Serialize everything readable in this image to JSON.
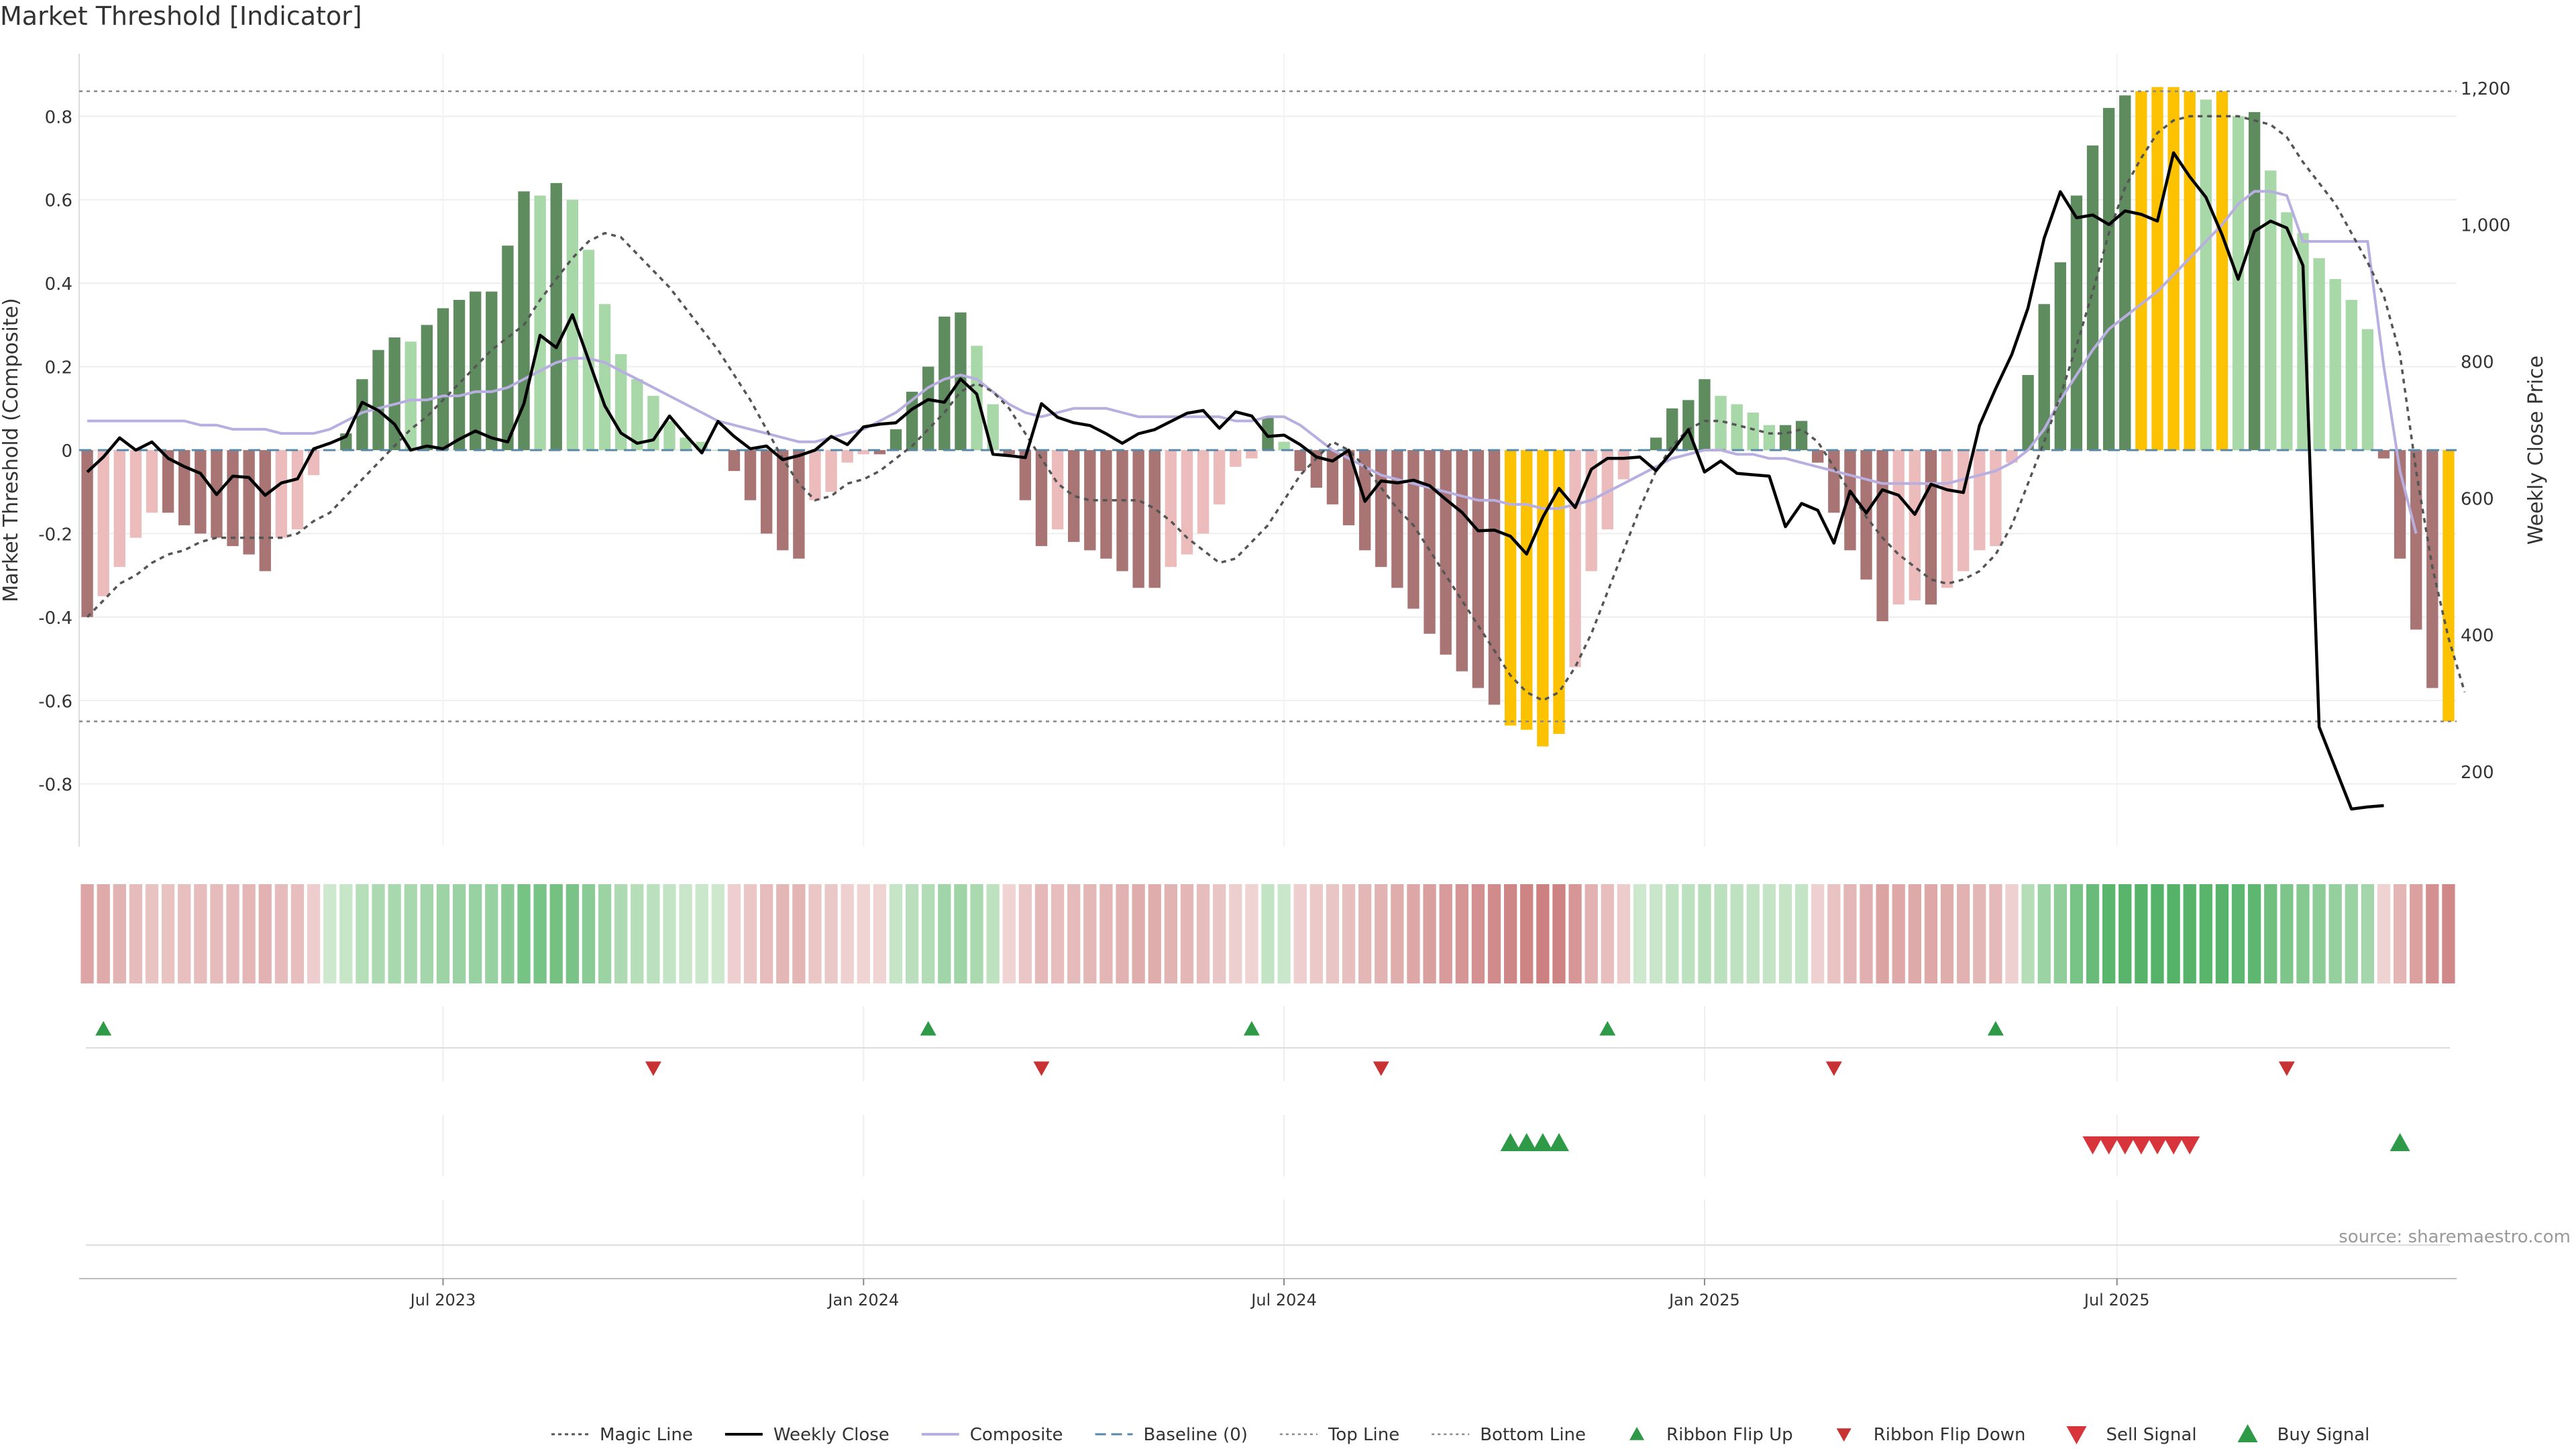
{
  "title": "Market Threshold [Indicator]",
  "source": "source: sharemaestro.com",
  "chart_data": {
    "type": "bar",
    "ylabel_left": "Market Threshold (Composite)",
    "ylabel_right": "Weekly Close Price",
    "left_ylim": [
      -0.95,
      0.95
    ],
    "left_ticks": [
      "-0.8",
      "-0.6",
      "-0.4",
      "-0.2",
      "0",
      "0.2",
      "0.4",
      "0.6",
      "0.8"
    ],
    "right_ylim": [
      90,
      1250
    ],
    "right_ticks": [
      "200",
      "400",
      "600",
      "800",
      "1,000",
      "1,200"
    ],
    "top_line": 0.86,
    "bottom_line": -0.65,
    "x_ticks": [
      {
        "label": "Jul 2023",
        "week": 22
      },
      {
        "label": "Jan 2024",
        "week": 48
      },
      {
        "label": "Jul 2024",
        "week": 74
      },
      {
        "label": "Jan 2025",
        "week": 100
      },
      {
        "label": "Jul 2025",
        "week": 125.5
      }
    ],
    "grid": true,
    "legend_position": "bottom",
    "composite_histogram": [
      -0.4,
      -0.35,
      -0.28,
      -0.21,
      -0.15,
      -0.15,
      -0.18,
      -0.2,
      -0.21,
      -0.23,
      -0.25,
      -0.29,
      -0.21,
      -0.19,
      -0.06,
      0,
      0.04,
      0.17,
      0.24,
      0.27,
      0.26,
      0.3,
      0.34,
      0.36,
      0.38,
      0.38,
      0.49,
      0.62,
      0.61,
      0.64,
      0.6,
      0.48,
      0.35,
      0.23,
      0.17,
      0.13,
      0.07,
      0.03,
      0.02,
      0,
      -0.05,
      -0.12,
      -0.2,
      -0.24,
      -0.26,
      -0.12,
      -0.1,
      -0.03,
      -0.01,
      -0.01,
      0.05,
      0.14,
      0.2,
      0.32,
      0.33,
      0.25,
      0.11,
      -0.01,
      -0.12,
      -0.23,
      -0.19,
      -0.22,
      -0.24,
      -0.26,
      -0.29,
      -0.33,
      -0.33,
      -0.28,
      -0.25,
      -0.2,
      -0.13,
      -0.04,
      -0.02,
      0.08,
      0.02,
      -0.05,
      -0.09,
      -0.13,
      -0.18,
      -0.24,
      -0.28,
      -0.33,
      -0.38,
      -0.44,
      -0.49,
      -0.53,
      -0.57,
      -0.61,
      -0.66,
      -0.67,
      -0.71,
      -0.68,
      -0.52,
      -0.29,
      -0.19,
      -0.07,
      0,
      0.03,
      0.1,
      0.12,
      0.17,
      0.13,
      0.11,
      0.09,
      0.06,
      0.06,
      0.07,
      -0.03,
      -0.15,
      -0.24,
      -0.31,
      -0.41,
      -0.37,
      -0.36,
      -0.37,
      -0.33,
      -0.29,
      -0.24,
      -0.23,
      -0.03,
      0.18,
      0.35,
      0.45,
      0.61,
      0.73,
      0.82,
      0.85,
      0.86,
      0.87,
      0.87,
      0.86,
      0.84,
      0.86,
      0.8,
      0.81,
      0.67,
      0.57,
      0.52,
      0.46,
      0.41,
      0.36,
      0.29,
      -0.02,
      -0.26,
      -0.43,
      -0.57,
      -0.65
    ],
    "weekly_close": [
      638,
      660,
      688,
      670,
      682,
      658,
      646,
      636,
      605,
      632,
      630,
      604,
      622,
      628,
      672,
      680,
      690,
      740,
      728,
      708,
      670,
      676,
      672,
      686,
      698,
      688,
      682,
      738,
      838,
      820,
      868,
      802,
      735,
      695,
      680,
      685,
      720,
      692,
      666,
      712,
      690,
      672,
      676,
      656,
      662,
      670,
      690,
      678,
      704,
      708,
      710,
      730,
      744,
      740,
      774,
      752,
      664,
      662,
      659,
      738,
      718,
      710,
      706,
      694,
      680,
      694,
      700,
      712,
      724,
      728,
      702,
      726,
      720,
      690,
      692,
      678,
      660,
      654,
      670,
      595,
      625,
      622,
      626,
      618,
      598,
      579,
      552,
      553,
      544,
      518,
      572,
      614,
      586,
      642,
      658,
      658,
      660,
      640,
      668,
      700,
      638,
      654,
      636,
      634,
      632,
      558,
      592,
      582,
      534,
      610,
      578,
      612,
      604,
      576,
      620,
      612,
      608,
      706,
      760,
      810,
      878,
      980,
      1048,
      1010,
      1014,
      1000,
      1020,
      1015,
      1005,
      1105,
      1070,
      1040,
      985,
      920,
      990,
      1005,
      995,
      940,
      265,
      205,
      145,
      148,
      150
    ],
    "magic_line": [
      -0.4,
      -0.36,
      -0.32,
      -0.3,
      -0.27,
      -0.25,
      -0.24,
      -0.22,
      -0.21,
      -0.21,
      -0.21,
      -0.21,
      -0.21,
      -0.2,
      -0.17,
      -0.15,
      -0.11,
      -0.07,
      -0.03,
      0.01,
      0.05,
      0.08,
      0.12,
      0.16,
      0.2,
      0.24,
      0.27,
      0.3,
      0.36,
      0.41,
      0.46,
      0.5,
      0.52,
      0.51,
      0.47,
      0.43,
      0.39,
      0.34,
      0.29,
      0.24,
      0.18,
      0.12,
      0.05,
      -0.02,
      -0.08,
      -0.12,
      -0.11,
      -0.08,
      -0.07,
      -0.05,
      -0.02,
      0.01,
      0.05,
      0.09,
      0.14,
      0.16,
      0.14,
      0.1,
      0.04,
      -0.02,
      -0.08,
      -0.11,
      -0.12,
      -0.12,
      -0.12,
      -0.12,
      -0.14,
      -0.17,
      -0.21,
      -0.24,
      -0.27,
      -0.26,
      -0.22,
      -0.18,
      -0.12,
      -0.06,
      -0.02,
      0.02,
      0.0,
      -0.04,
      -0.09,
      -0.14,
      -0.18,
      -0.24,
      -0.3,
      -0.36,
      -0.42,
      -0.48,
      -0.54,
      -0.58,
      -0.6,
      -0.58,
      -0.52,
      -0.44,
      -0.34,
      -0.24,
      -0.14,
      -0.05,
      0.01,
      0.05,
      0.07,
      0.07,
      0.06,
      0.05,
      0.04,
      0.04,
      0.05,
      0.02,
      -0.04,
      -0.1,
      -0.16,
      -0.21,
      -0.25,
      -0.28,
      -0.31,
      -0.32,
      -0.31,
      -0.29,
      -0.25,
      -0.18,
      -0.08,
      0.02,
      0.13,
      0.25,
      0.38,
      0.52,
      0.63,
      0.7,
      0.76,
      0.79,
      0.8,
      0.8,
      0.8,
      0.8,
      0.79,
      0.78,
      0.75,
      0.69,
      0.64,
      0.59,
      0.52,
      0.45,
      0.37,
      0.23,
      -0.05,
      -0.28,
      -0.45,
      -0.58
    ],
    "composite_line": [
      0.07,
      0.07,
      0.07,
      0.07,
      0.07,
      0.07,
      0.07,
      0.06,
      0.06,
      0.05,
      0.05,
      0.05,
      0.04,
      0.04,
      0.04,
      0.05,
      0.07,
      0.09,
      0.1,
      0.11,
      0.12,
      0.12,
      0.13,
      0.13,
      0.14,
      0.14,
      0.15,
      0.17,
      0.19,
      0.21,
      0.22,
      0.22,
      0.21,
      0.19,
      0.17,
      0.15,
      0.13,
      0.11,
      0.09,
      0.07,
      0.06,
      0.05,
      0.04,
      0.03,
      0.02,
      0.02,
      0.03,
      0.04,
      0.05,
      0.07,
      0.09,
      0.12,
      0.15,
      0.17,
      0.18,
      0.17,
      0.14,
      0.11,
      0.09,
      0.08,
      0.09,
      0.1,
      0.1,
      0.1,
      0.09,
      0.08,
      0.08,
      0.08,
      0.08,
      0.08,
      0.08,
      0.07,
      0.07,
      0.08,
      0.08,
      0.06,
      0.03,
      0,
      -0.02,
      -0.04,
      -0.06,
      -0.07,
      -0.08,
      -0.09,
      -0.1,
      -0.11,
      -0.12,
      -0.12,
      -0.13,
      -0.13,
      -0.14,
      -0.14,
      -0.13,
      -0.12,
      -0.1,
      -0.08,
      -0.06,
      -0.04,
      -0.02,
      -0.01,
      0,
      0,
      -0.01,
      -0.01,
      -0.02,
      -0.02,
      -0.03,
      -0.04,
      -0.05,
      -0.06,
      -0.07,
      -0.08,
      -0.08,
      -0.08,
      -0.08,
      -0.08,
      -0.07,
      -0.06,
      -0.05,
      -0.03,
      0,
      0.05,
      0.12,
      0.18,
      0.24,
      0.29,
      0.32,
      0.35,
      0.38,
      0.42,
      0.46,
      0.5,
      0.54,
      0.59,
      0.62,
      0.62,
      0.61,
      0.5,
      0.5,
      0.5,
      0.5,
      0.5,
      0.2,
      -0.05,
      -0.2
    ]
  },
  "legend": [
    {
      "label": "Magic Line",
      "marker": "dotted-line"
    },
    {
      "label": "Weekly Close",
      "marker": "solid-line"
    },
    {
      "label": "Composite",
      "marker": "lavender-line"
    },
    {
      "label": "Baseline (0)",
      "marker": "dashed-line"
    },
    {
      "label": "Top Line",
      "marker": "fine-dotted-line"
    },
    {
      "label": "Bottom Line",
      "marker": "fine-dotted-line"
    },
    {
      "label": "Ribbon Flip Up",
      "marker": "small-green-triangle-up"
    },
    {
      "label": "Ribbon Flip Down",
      "marker": "small-red-triangle-down"
    },
    {
      "label": "Sell Signal",
      "marker": "red-triangle-down"
    },
    {
      "label": "Buy Signal",
      "marker": "green-triangle-up"
    }
  ],
  "signals": {
    "ribbon_flip_up_weeks": [
      1,
      52,
      72,
      94,
      118
    ],
    "ribbon_flip_down_weeks": [
      35,
      59,
      80,
      108,
      136
    ],
    "buy_signal_weeks": [
      88,
      89,
      90,
      91,
      143
    ],
    "sell_signal_weeks": [
      124,
      125,
      126,
      127,
      128,
      129,
      130
    ]
  },
  "colors": {
    "bar_strong_green": "#5e8c5e",
    "bar_light_green": "#a8d8a8",
    "bar_strong_red": "#a87474",
    "bar_light_red": "#ecbcbc",
    "bar_extreme": "#fcc200",
    "close_line": "#000000",
    "magic_line": "#555555",
    "composite_line": "#b8aee0",
    "baseline": "#5a88a8",
    "threshold_line": "#888888",
    "buy": "#2e9a48",
    "sell": "#d8343c",
    "flip_up": "#2e9a48",
    "flip_down": "#c83232"
  }
}
